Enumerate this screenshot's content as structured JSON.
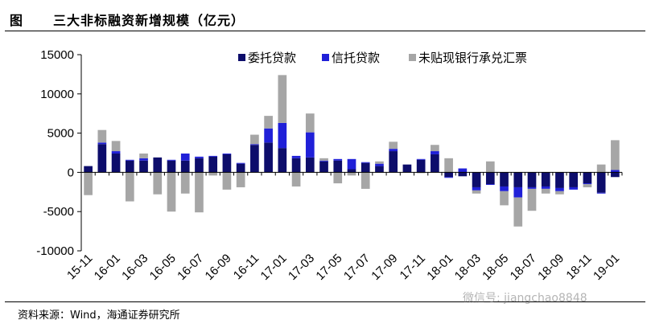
{
  "header": {
    "fig_label": "图",
    "title": "三大非标融资新增规模（亿元）"
  },
  "footer": {
    "source": "资料来源：Wind，海通证券研究所",
    "watermark": "微信号: jiangchao8848"
  },
  "colors": {
    "entrusted": "#0d0d6b",
    "trust": "#2020d8",
    "bankers_acceptance": "#a6a6a6"
  },
  "chart_data": {
    "type": "bar",
    "stacked": true,
    "ylim": [
      -10000,
      15000
    ],
    "yticks": [
      15000,
      10000,
      5000,
      0,
      -5000,
      -10000
    ],
    "legend_position": "top",
    "grid": false,
    "categories": [
      "15-11",
      "15-12",
      "16-01",
      "16-02",
      "16-03",
      "16-04",
      "16-05",
      "16-06",
      "16-07",
      "16-08",
      "16-09",
      "16-10",
      "16-11",
      "16-12",
      "17-01",
      "17-02",
      "17-03",
      "17-04",
      "17-05",
      "17-06",
      "17-07",
      "17-08",
      "17-09",
      "17-10",
      "17-11",
      "17-12",
      "18-01",
      "18-02",
      "18-03",
      "18-04",
      "18-05",
      "18-06",
      "18-07",
      "18-08",
      "18-09",
      "18-10",
      "18-11",
      "18-12",
      "19-01"
    ],
    "xtick_labels": [
      "15-11",
      "16-01",
      "16-03",
      "16-05",
      "16-07",
      "16-09",
      "16-11",
      "17-01",
      "17-03",
      "17-05",
      "17-07",
      "17-09",
      "17-11",
      "18-01",
      "18-03",
      "18-05",
      "18-07",
      "18-09",
      "18-11",
      "19-01"
    ],
    "series": [
      {
        "name": "委托贷款",
        "values": [
          800,
          3600,
          2400,
          1500,
          1500,
          1900,
          1500,
          1500,
          1800,
          2000,
          2300,
          1100,
          3500,
          3800,
          3100,
          1800,
          1900,
          1400,
          1500,
          400,
          1200,
          800,
          2700,
          1000,
          1600,
          2300,
          -600,
          -500,
          -1900,
          -1500,
          -1800,
          -1900,
          -1900,
          -1800,
          -2000,
          -1900,
          -1400,
          -2600,
          -600
        ]
      },
      {
        "name": "信托贷款",
        "values": [
          0,
          200,
          300,
          100,
          300,
          0,
          100,
          900,
          200,
          100,
          100,
          100,
          100,
          1800,
          3200,
          300,
          3200,
          100,
          200,
          1300,
          100,
          300,
          300,
          0,
          100,
          400,
          -100,
          500,
          -400,
          -100,
          -600,
          -1300,
          -200,
          -300,
          -400,
          -300,
          -100,
          -100,
          300
        ]
      },
      {
        "name": "未贴现银行承兑汇票",
        "values": [
          -2900,
          1600,
          1300,
          -3700,
          600,
          -2800,
          -5000,
          -2700,
          -5100,
          -400,
          -2200,
          -1900,
          1200,
          1600,
          6100,
          -1800,
          2400,
          300,
          -1400,
          -400,
          -2100,
          300,
          900,
          0,
          -100,
          800,
          1800,
          0,
          -400,
          1400,
          -1800,
          -3700,
          -2800,
          -600,
          -400,
          0,
          -400,
          1000,
          3800
        ]
      }
    ]
  }
}
